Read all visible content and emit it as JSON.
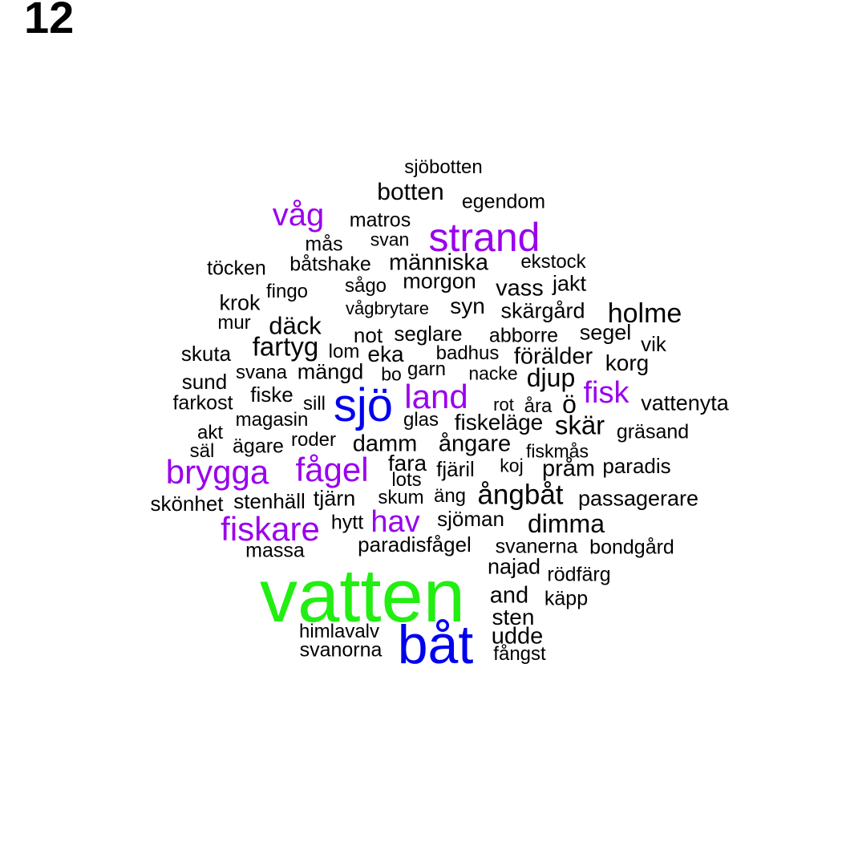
{
  "panel_label": "12",
  "colors": {
    "green": "#22ee11",
    "blue": "#0000ee",
    "purple": "#9900ee",
    "black": "#000000"
  },
  "words": [
    {
      "text": "vatten",
      "color": "green"
    },
    {
      "text": "båt",
      "color": "blue"
    },
    {
      "text": "sjö",
      "color": "blue"
    },
    {
      "text": "strand",
      "color": "purple"
    },
    {
      "text": "land",
      "color": "purple"
    },
    {
      "text": "våg",
      "color": "purple"
    },
    {
      "text": "brygga",
      "color": "purple"
    },
    {
      "text": "fågel",
      "color": "purple"
    },
    {
      "text": "fiskare",
      "color": "purple"
    },
    {
      "text": "hav",
      "color": "purple"
    },
    {
      "text": "fisk",
      "color": "purple"
    },
    {
      "text": "sjöbotten",
      "color": "black"
    },
    {
      "text": "botten",
      "color": "black"
    },
    {
      "text": "egendom",
      "color": "black"
    },
    {
      "text": "matros",
      "color": "black"
    },
    {
      "text": "svan",
      "color": "black"
    },
    {
      "text": "mås",
      "color": "black"
    },
    {
      "text": "töcken",
      "color": "black"
    },
    {
      "text": "båtshake",
      "color": "black"
    },
    {
      "text": "människa",
      "color": "black"
    },
    {
      "text": "ekstock",
      "color": "black"
    },
    {
      "text": "fingo",
      "color": "black"
    },
    {
      "text": "sågo",
      "color": "black"
    },
    {
      "text": "morgon",
      "color": "black"
    },
    {
      "text": "vass",
      "color": "black"
    },
    {
      "text": "jakt",
      "color": "black"
    },
    {
      "text": "krok",
      "color": "black"
    },
    {
      "text": "vågbrytare",
      "color": "black"
    },
    {
      "text": "syn",
      "color": "black"
    },
    {
      "text": "skärgård",
      "color": "black"
    },
    {
      "text": "holme",
      "color": "black"
    },
    {
      "text": "mur",
      "color": "black"
    },
    {
      "text": "däck",
      "color": "black"
    },
    {
      "text": "not",
      "color": "black"
    },
    {
      "text": "seglare",
      "color": "black"
    },
    {
      "text": "abborre",
      "color": "black"
    },
    {
      "text": "segel",
      "color": "black"
    },
    {
      "text": "fartyg",
      "color": "black"
    },
    {
      "text": "vik",
      "color": "black"
    },
    {
      "text": "skuta",
      "color": "black"
    },
    {
      "text": "lom",
      "color": "black"
    },
    {
      "text": "eka",
      "color": "black"
    },
    {
      "text": "badhus",
      "color": "black"
    },
    {
      "text": "förälder",
      "color": "black"
    },
    {
      "text": "korg",
      "color": "black"
    },
    {
      "text": "sund",
      "color": "black"
    },
    {
      "text": "svana",
      "color": "black"
    },
    {
      "text": "mängd",
      "color": "black"
    },
    {
      "text": "bo",
      "color": "black"
    },
    {
      "text": "garn",
      "color": "black"
    },
    {
      "text": "nacke",
      "color": "black"
    },
    {
      "text": "djup",
      "color": "black"
    },
    {
      "text": "farkost",
      "color": "black"
    },
    {
      "text": "fiske",
      "color": "black"
    },
    {
      "text": "sill",
      "color": "black"
    },
    {
      "text": "rot",
      "color": "black"
    },
    {
      "text": "åra",
      "color": "black"
    },
    {
      "text": "ö",
      "color": "black"
    },
    {
      "text": "vattenyta",
      "color": "black"
    },
    {
      "text": "magasin",
      "color": "black"
    },
    {
      "text": "glas",
      "color": "black"
    },
    {
      "text": "fiskeläge",
      "color": "black"
    },
    {
      "text": "skär",
      "color": "black"
    },
    {
      "text": "akt",
      "color": "black"
    },
    {
      "text": "gräsand",
      "color": "black"
    },
    {
      "text": "säl",
      "color": "black"
    },
    {
      "text": "ägare",
      "color": "black"
    },
    {
      "text": "roder",
      "color": "black"
    },
    {
      "text": "damm",
      "color": "black"
    },
    {
      "text": "ångare",
      "color": "black"
    },
    {
      "text": "fiskmås",
      "color": "black"
    },
    {
      "text": "fara",
      "color": "black"
    },
    {
      "text": "fjäril",
      "color": "black"
    },
    {
      "text": "koj",
      "color": "black"
    },
    {
      "text": "pråm",
      "color": "black"
    },
    {
      "text": "paradis",
      "color": "black"
    },
    {
      "text": "lots",
      "color": "black"
    },
    {
      "text": "skönhet",
      "color": "black"
    },
    {
      "text": "stenhäll",
      "color": "black"
    },
    {
      "text": "tjärn",
      "color": "black"
    },
    {
      "text": "skum",
      "color": "black"
    },
    {
      "text": "äng",
      "color": "black"
    },
    {
      "text": "ångbåt",
      "color": "black"
    },
    {
      "text": "passagerare",
      "color": "black"
    },
    {
      "text": "hytt",
      "color": "black"
    },
    {
      "text": "sjöman",
      "color": "black"
    },
    {
      "text": "dimma",
      "color": "black"
    },
    {
      "text": "massa",
      "color": "black"
    },
    {
      "text": "paradisfågel",
      "color": "black"
    },
    {
      "text": "svanerna",
      "color": "black"
    },
    {
      "text": "bondgård",
      "color": "black"
    },
    {
      "text": "najad",
      "color": "black"
    },
    {
      "text": "rödfärg",
      "color": "black"
    },
    {
      "text": "and",
      "color": "black"
    },
    {
      "text": "käpp",
      "color": "black"
    },
    {
      "text": "sten",
      "color": "black"
    },
    {
      "text": "himlavalv",
      "color": "black"
    },
    {
      "text": "udde",
      "color": "black"
    },
    {
      "text": "svanorna",
      "color": "black"
    },
    {
      "text": "fångst",
      "color": "black"
    }
  ]
}
